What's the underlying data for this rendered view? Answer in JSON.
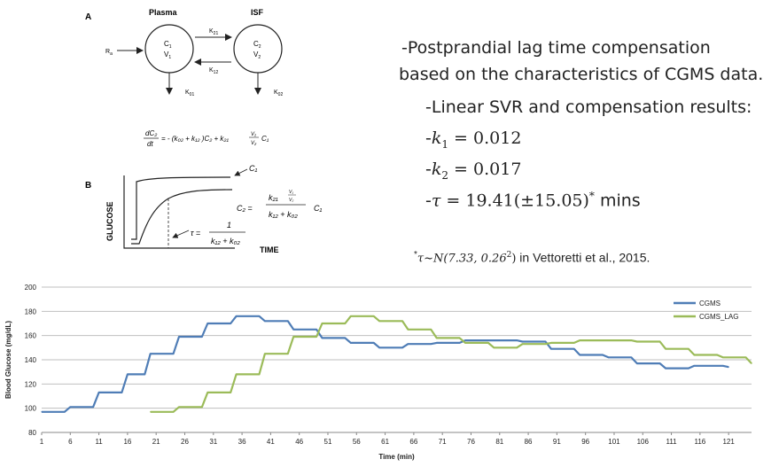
{
  "diagram_a": {
    "panel_label": "A",
    "plasma_label": "Plasma",
    "isf_label": "ISF",
    "c1": "C",
    "c1_sub": "1",
    "v1": "V",
    "v1_sub": "1",
    "c2": "C",
    "c2_sub": "2",
    "v2": "V",
    "v2_sub": "2",
    "ra": "R",
    "ra_sub": "a",
    "k21": "K",
    "k21_sub": "21",
    "k12": "K",
    "k12_sub": "12",
    "k01": "K",
    "k01_sub": "01",
    "k02": "K",
    "k02_sub": "02",
    "equation_lhs_num": "dC₂",
    "equation_lhs_den": "dt",
    "equation_rhs": "= - (k₀₂ + k₁₂ )C₂ + k₂₁",
    "equation_frac_num": "V₁",
    "equation_frac_den": "V₂",
    "equation_tail": "C₁"
  },
  "diagram_b": {
    "panel_label": "B",
    "y_axis_label": "GLUCOSE",
    "x_axis_label": "TIME",
    "c1_label": "C₁",
    "c2_eq_lhs": "C₂ =",
    "c2_frac_num_k": "k₂₁",
    "c2_frac_num_v_num": "V₁",
    "c2_frac_num_v_den": "V₂",
    "c2_frac_den": "k₁₂ + k₀₂",
    "c2_tail": "C₁",
    "tau_lhs": "τ =",
    "tau_num": "1",
    "tau_den": "k₁₂ + k₀₂"
  },
  "text_panel": {
    "line1": "-Postprandial lag time compensation",
    "line2": "based on the characteristics of CGMS data.",
    "line3": "-Linear SVR and compensation results:",
    "k1_prefix": "-",
    "k1_var": "k",
    "k1_sub": "1",
    "k1_value": " = 0.012",
    "k2_prefix": "-",
    "k2_var": "k",
    "k2_sub": "2",
    "k2_value": " = 0.017",
    "tau_prefix": "-",
    "tau_var": "τ",
    "tau_value": " = 19.41(±15.05)",
    "tau_sup": "*",
    "tau_unit": " mins",
    "footnote_star": "*",
    "footnote_math": "τ~N(7.33, 0.26",
    "footnote_math_sup": "2",
    "footnote_math_close": ")",
    "footnote_text": " in Vettoretti et al., 2015."
  },
  "chart_data": {
    "type": "line",
    "title": "",
    "xlabel": "Time (min)",
    "ylabel": "Blood Glucose (mg/dL)",
    "ylim": [
      80,
      200
    ],
    "xlim": [
      1,
      125
    ],
    "yticks": [
      80,
      100,
      120,
      140,
      160,
      180,
      200
    ],
    "xticks": [
      1,
      6,
      11,
      16,
      21,
      26,
      31,
      36,
      41,
      46,
      51,
      56,
      61,
      66,
      71,
      76,
      81,
      86,
      91,
      96,
      101,
      106,
      111,
      116,
      121
    ],
    "grid": "horizontal",
    "legend_position": "top-right",
    "series": [
      {
        "name": "CGMS",
        "color": "#4F7DB6",
        "x": [
          1,
          5,
          6,
          10,
          11,
          15,
          16,
          19,
          20,
          24,
          25,
          29,
          30,
          34,
          35,
          39,
          40,
          44,
          45,
          49,
          50,
          54,
          55,
          59,
          60,
          64,
          65,
          69,
          70,
          74,
          75,
          79,
          80,
          84,
          85,
          89,
          90,
          94,
          95,
          99,
          100,
          104,
          105,
          109,
          110,
          114,
          115,
          119,
          120,
          121
        ],
        "values": [
          97,
          97,
          101,
          101,
          113,
          113,
          128,
          128,
          145,
          145,
          159,
          159,
          170,
          170,
          176,
          176,
          172,
          172,
          165,
          165,
          158,
          158,
          154,
          154,
          150,
          150,
          153,
          153,
          154,
          154,
          156,
          156,
          156,
          156,
          155,
          155,
          149,
          149,
          144,
          144,
          142,
          142,
          137,
          137,
          133,
          133,
          135,
          135,
          135,
          134
        ]
      },
      {
        "name": "CGMS_LAG",
        "color": "#9BBB59",
        "x": [
          20,
          24,
          25,
          29,
          30,
          34,
          35,
          39,
          40,
          44,
          45,
          49,
          50,
          54,
          55,
          59,
          60,
          64,
          65,
          69,
          70,
          74,
          75,
          79,
          80,
          84,
          85,
          89,
          90,
          94,
          95,
          99,
          100,
          104,
          105,
          109,
          110,
          114,
          115,
          119,
          120,
          124,
          125
        ],
        "values": [
          97,
          97,
          101,
          101,
          113,
          113,
          128,
          128,
          145,
          145,
          159,
          159,
          170,
          170,
          176,
          176,
          172,
          172,
          165,
          165,
          158,
          158,
          154,
          154,
          150,
          150,
          153,
          153,
          154,
          154,
          156,
          156,
          156,
          156,
          155,
          155,
          149,
          149,
          144,
          144,
          142,
          142,
          137
        ]
      }
    ]
  }
}
